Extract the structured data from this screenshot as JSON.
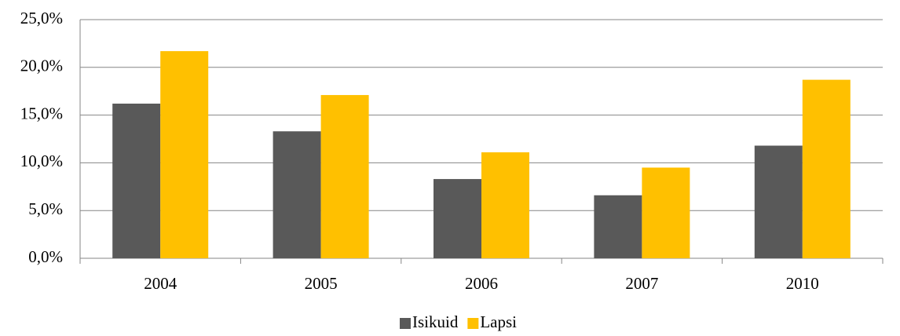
{
  "chart_data": {
    "type": "bar",
    "categories": [
      "2004",
      "2005",
      "2006",
      "2007",
      "2010"
    ],
    "series": [
      {
        "name": "Isikuid",
        "color": "#595959",
        "values": [
          16.2,
          13.3,
          8.3,
          6.6,
          11.8
        ]
      },
      {
        "name": "Lapsi",
        "color": "#ffc000",
        "values": [
          21.7,
          17.1,
          11.1,
          9.5,
          18.7
        ]
      }
    ],
    "ylim": [
      0,
      25
    ],
    "yticks": [
      {
        "value": 0,
        "label": "0,0%"
      },
      {
        "value": 5,
        "label": "5,0%"
      },
      {
        "value": 10,
        "label": "10,0%"
      },
      {
        "value": 15,
        "label": "15,0%"
      },
      {
        "value": 20,
        "label": "20,0%"
      },
      {
        "value": 25,
        "label": "25,0%"
      }
    ],
    "grid": true,
    "legend": "bottom"
  }
}
